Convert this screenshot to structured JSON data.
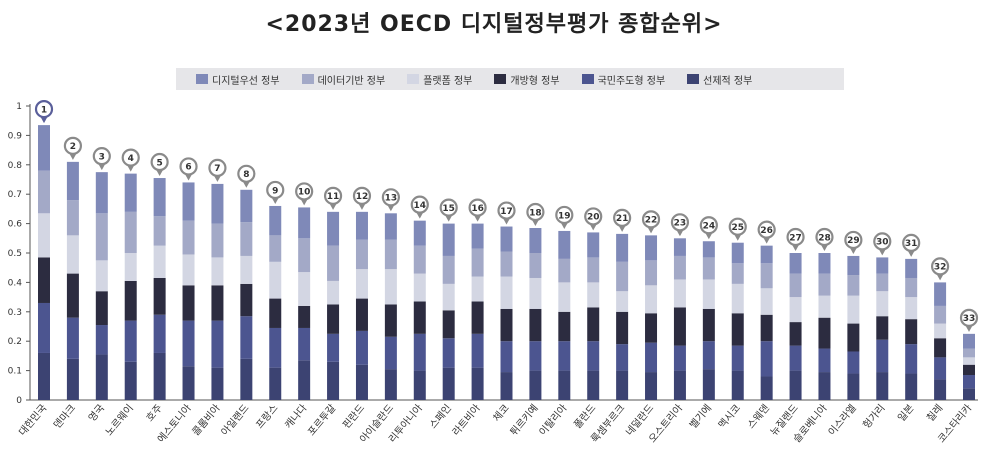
{
  "title": "<2023년 OECD 디지털정부평가 종합순위>",
  "legend": [
    {
      "label": "디지털우선 정부",
      "color": "#7f89b8"
    },
    {
      "label": "데이터기반 정부",
      "color": "#a3a9c7"
    },
    {
      "label": "플랫폼 정부",
      "color": "#d3d6e3"
    },
    {
      "label": "개방형 정부",
      "color": "#2c2c40"
    },
    {
      "label": "국민주도형 정부",
      "color": "#4c5590"
    },
    {
      "label": "선제적 정부",
      "color": "#3c4372"
    }
  ],
  "colors": {
    "pin": "#8a8a8a",
    "pin_top": "#5a5f9a"
  },
  "chart_data": {
    "type": "bar",
    "stacked": true,
    "ylim": [
      0,
      1
    ],
    "yticks": [
      "0",
      "0.1",
      "0.2",
      "0.3",
      "0.4",
      "0.5",
      "0.6",
      "0.7",
      "0.8",
      "0.9",
      "1"
    ],
    "categories": [
      "대한민국",
      "덴마크",
      "영국",
      "노르웨이",
      "호주",
      "에스토니아",
      "콜롬비아",
      "아일랜드",
      "프랑스",
      "캐나다",
      "포르투갈",
      "핀란드",
      "아이슬란드",
      "리투아니아",
      "스페인",
      "라트비아",
      "체코",
      "튀르키예",
      "이탈리아",
      "폴란드",
      "룩셈부르크",
      "네덜란드",
      "오스트리아",
      "벨기에",
      "멕시코",
      "스웨덴",
      "뉴질랜드",
      "슬로베니아",
      "이스라엘",
      "헝가리",
      "일본",
      "칠레",
      "코스타리카"
    ],
    "ranks": [
      "1",
      "2",
      "3",
      "4",
      "5",
      "6",
      "7",
      "8",
      "9",
      "10",
      "11",
      "12",
      "13",
      "14",
      "15",
      "16",
      "17",
      "18",
      "19",
      "20",
      "21",
      "22",
      "23",
      "24",
      "25",
      "26",
      "27",
      "28",
      "29",
      "30",
      "31",
      "32",
      "33"
    ],
    "totals": [
      0.935,
      0.81,
      0.775,
      0.77,
      0.755,
      0.74,
      0.735,
      0.715,
      0.66,
      0.655,
      0.64,
      0.64,
      0.635,
      0.61,
      0.6,
      0.6,
      0.59,
      0.585,
      0.575,
      0.57,
      0.565,
      0.56,
      0.55,
      0.54,
      0.535,
      0.525,
      0.5,
      0.5,
      0.49,
      0.485,
      0.48,
      0.4,
      0.225
    ],
    "series": [
      {
        "name": "선제적 정부",
        "color": "#3c4372",
        "values": [
          0.16,
          0.14,
          0.155,
          0.13,
          0.16,
          0.115,
          0.11,
          0.14,
          0.11,
          0.135,
          0.13,
          0.12,
          0.105,
          0.1,
          0.11,
          0.11,
          0.095,
          0.1,
          0.1,
          0.1,
          0.1,
          0.095,
          0.1,
          0.105,
          0.1,
          0.08,
          0.1,
          0.095,
          0.09,
          0.095,
          0.09,
          0.07,
          0.04
        ]
      },
      {
        "name": "국민주도형 정부",
        "color": "#4c5590",
        "values": [
          0.17,
          0.14,
          0.1,
          0.14,
          0.13,
          0.155,
          0.16,
          0.145,
          0.135,
          0.11,
          0.095,
          0.115,
          0.11,
          0.125,
          0.1,
          0.115,
          0.105,
          0.1,
          0.1,
          0.1,
          0.09,
          0.1,
          0.085,
          0.095,
          0.085,
          0.12,
          0.085,
          0.08,
          0.075,
          0.11,
          0.1,
          0.075,
          0.045
        ]
      },
      {
        "name": "개방형 정부",
        "color": "#2c2c40",
        "values": [
          0.155,
          0.15,
          0.115,
          0.135,
          0.125,
          0.12,
          0.12,
          0.11,
          0.1,
          0.075,
          0.1,
          0.11,
          0.11,
          0.11,
          0.095,
          0.11,
          0.11,
          0.11,
          0.1,
          0.115,
          0.11,
          0.1,
          0.13,
          0.11,
          0.11,
          0.09,
          0.08,
          0.105,
          0.095,
          0.08,
          0.085,
          0.065,
          0.035
        ]
      },
      {
        "name": "플랫폼 정부",
        "color": "#d3d6e3",
        "values": [
          0.15,
          0.13,
          0.105,
          0.095,
          0.11,
          0.105,
          0.095,
          0.095,
          0.125,
          0.115,
          0.08,
          0.1,
          0.12,
          0.095,
          0.09,
          0.085,
          0.11,
          0.105,
          0.1,
          0.085,
          0.07,
          0.095,
          0.095,
          0.1,
          0.1,
          0.09,
          0.085,
          0.075,
          0.095,
          0.085,
          0.075,
          0.05,
          0.025
        ]
      },
      {
        "name": "데이터기반 정부",
        "color": "#a3a9c7",
        "values": [
          0.145,
          0.12,
          0.16,
          0.14,
          0.1,
          0.115,
          0.115,
          0.115,
          0.09,
          0.115,
          0.12,
          0.1,
          0.1,
          0.095,
          0.095,
          0.095,
          0.085,
          0.085,
          0.08,
          0.085,
          0.1,
          0.085,
          0.08,
          0.075,
          0.07,
          0.085,
          0.08,
          0.075,
          0.07,
          0.06,
          0.065,
          0.06,
          0.03
        ]
      },
      {
        "name": "디지털우선 정부",
        "color": "#7f89b8",
        "values": [
          0.155,
          0.13,
          0.14,
          0.13,
          0.13,
          0.13,
          0.135,
          0.11,
          0.1,
          0.105,
          0.115,
          0.095,
          0.09,
          0.085,
          0.11,
          0.085,
          0.085,
          0.085,
          0.095,
          0.085,
          0.095,
          0.085,
          0.06,
          0.055,
          0.07,
          0.06,
          0.07,
          0.07,
          0.065,
          0.055,
          0.065,
          0.08,
          0.05
        ]
      }
    ]
  }
}
